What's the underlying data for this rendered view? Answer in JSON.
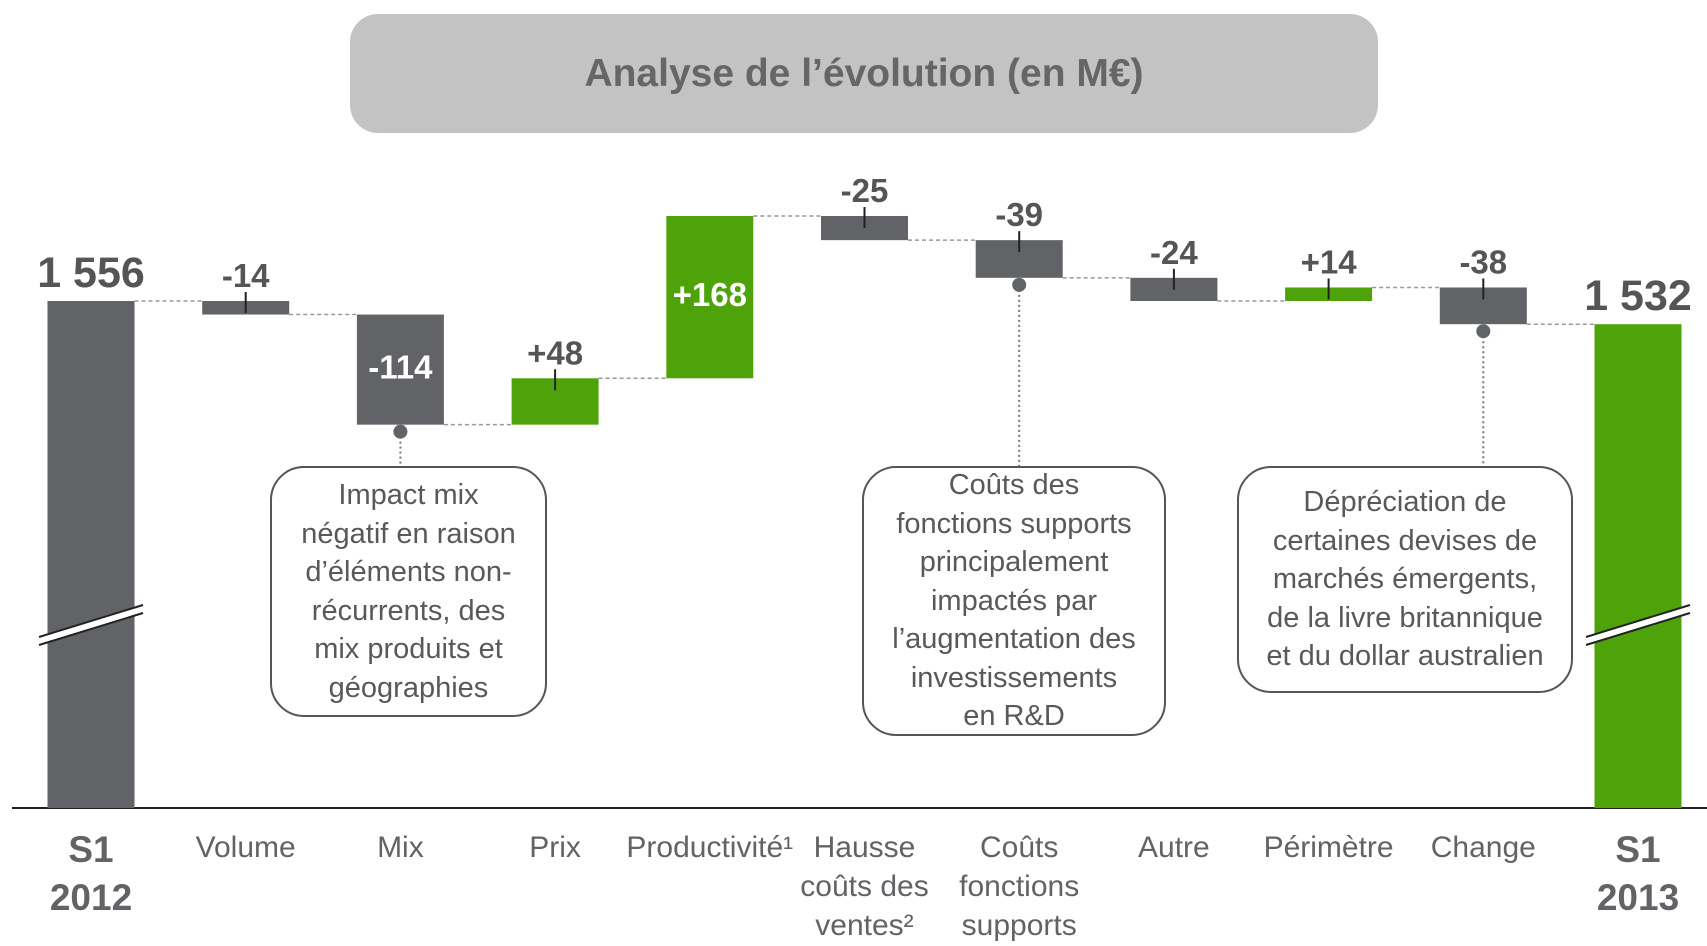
{
  "chart_data": {
    "type": "waterfall",
    "title": "Analyse de l’évolution (en M€)",
    "categories": [
      "S1\n2012",
      "Volume",
      "Mix",
      "Prix",
      "Productivité¹",
      "Hausse\ncoûts des\nventes²",
      "Coûts\nfonctions\nsupports",
      "Autre",
      "Périmètre",
      "Change",
      "S1\n2013"
    ],
    "measure": [
      "total",
      "relative",
      "relative",
      "relative",
      "relative",
      "relative",
      "relative",
      "relative",
      "relative",
      "relative",
      "total"
    ],
    "values": [
      1556,
      -14,
      -114,
      48,
      168,
      -25,
      -39,
      -24,
      14,
      -38,
      1532
    ],
    "value_labels": [
      "1 556",
      "-14",
      "-114",
      "+48",
      "+168",
      "-25",
      "-39",
      "-24",
      "+14",
      "-38",
      "1 532"
    ],
    "colors": [
      "#626366",
      "#626366",
      "#626366",
      "#4fa30a",
      "#4fa30a",
      "#626366",
      "#626366",
      "#626366",
      "#4fa30a",
      "#626366",
      "#4fa30a"
    ],
    "annotations": [
      {
        "category": "Mix",
        "lines": [
          "Impact mix",
          "négatif en raison",
          "d’éléments non-",
          "récurrents, des",
          "mix produits et",
          "géographies"
        ]
      },
      {
        "category": "Coûts\nfonctions\nsupports",
        "lines": [
          "Coûts des",
          "fonctions supports",
          "principalement",
          "impactés par",
          "l’augmentation des",
          "investissements",
          "en R&D"
        ]
      },
      {
        "category": "Change",
        "lines": [
          "Dépréciation de",
          "certaines devises de",
          "marchés émergents,",
          "de la livre britannique",
          "et du dollar australien"
        ]
      }
    ]
  }
}
